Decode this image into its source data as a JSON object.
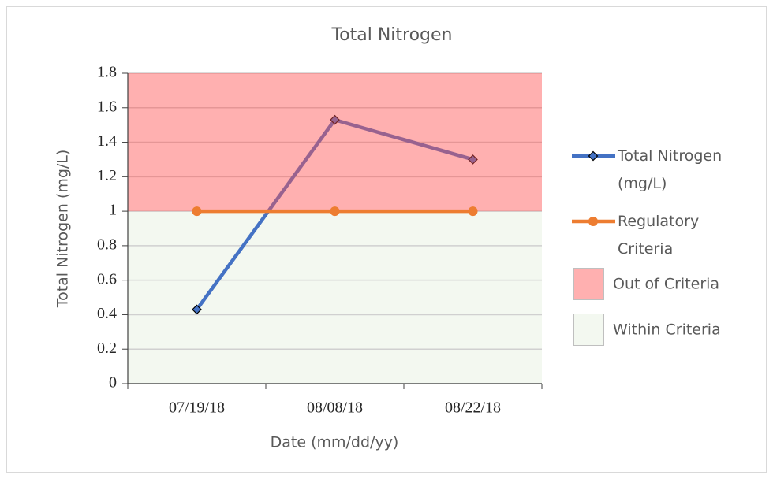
{
  "chart_data": {
    "type": "line",
    "title": "Total Nitrogen",
    "x_label": "Date (mm/dd/yy)",
    "y_label": "Total Nitrogen (mg/L)",
    "categories": [
      "07/19/18",
      "08/08/18",
      "08/22/18"
    ],
    "series": [
      {
        "name": "Total Nitrogen (mg/L)",
        "color": "#4472c4",
        "marker": "diamond",
        "values": [
          0.43,
          1.53,
          1.3
        ]
      },
      {
        "name": "Regulatory Criteria",
        "color": "#ed7d31",
        "marker": "circle",
        "values": [
          1,
          1,
          1
        ]
      }
    ],
    "bands": [
      {
        "name": "Out of Criteria",
        "color": "#ff5050",
        "from": 1,
        "to": 1.8
      },
      {
        "name": "Within Criteria",
        "color": "#f3f8f0",
        "from": 0,
        "to": 1
      }
    ],
    "ylim": [
      0,
      1.8
    ],
    "yticks": [
      0,
      0.2,
      0.4,
      0.6,
      0.8,
      1,
      1.2,
      1.4,
      1.6,
      1.8
    ],
    "grid": true,
    "legend": "right"
  }
}
